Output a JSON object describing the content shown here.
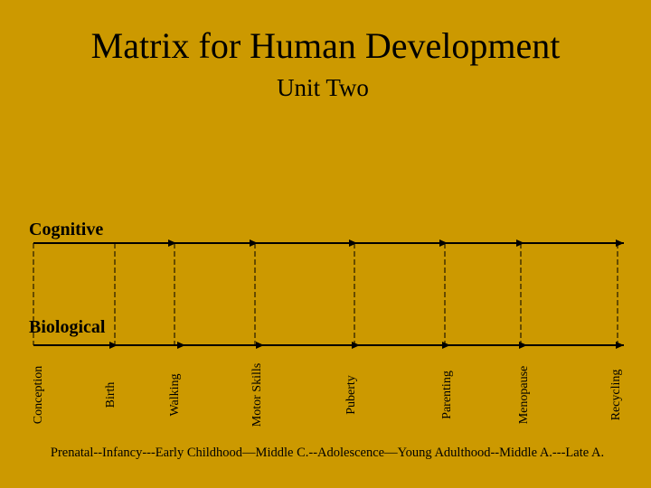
{
  "header": {
    "title": "Matrix for Human Development",
    "subtitle": "Unit Two"
  },
  "axes": {
    "top": "Cognitive",
    "bottom": "Biological"
  },
  "milestones": [
    "Conception",
    "Birth",
    "Walking",
    "Motor Skills",
    "Puberty",
    "Parenting",
    "Menopause",
    "Recycling"
  ],
  "stages": "Prenatal--Infancy---Early Childhood—Middle C.--Adolescence—Young Adulthood--Middle A.---Late A."
}
